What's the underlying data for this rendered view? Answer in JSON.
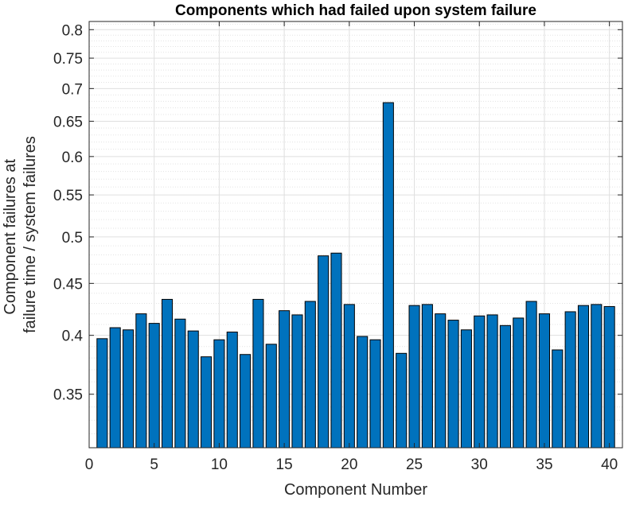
{
  "chart_data": {
    "type": "bar",
    "title": "Components which had failed upon system failure",
    "xlabel": "Component Number",
    "ylabel_lines": [
      "Component failures at",
      "failure time / system failures"
    ],
    "x": [
      1,
      2,
      3,
      4,
      5,
      6,
      7,
      8,
      9,
      10,
      11,
      12,
      13,
      14,
      15,
      16,
      17,
      18,
      19,
      20,
      21,
      22,
      23,
      24,
      25,
      26,
      27,
      28,
      29,
      30,
      31,
      32,
      33,
      34,
      35,
      36,
      37,
      38,
      39,
      40
    ],
    "values": [
      0.397,
      0.407,
      0.405,
      0.42,
      0.411,
      0.434,
      0.415,
      0.404,
      0.381,
      0.396,
      0.403,
      0.383,
      0.434,
      0.392,
      0.423,
      0.419,
      0.432,
      0.479,
      0.482,
      0.429,
      0.399,
      0.396,
      0.678,
      0.384,
      0.428,
      0.429,
      0.42,
      0.414,
      0.405,
      0.418,
      0.419,
      0.409,
      0.416,
      0.432,
      0.42,
      0.387,
      0.422,
      0.428,
      0.429,
      0.427
    ],
    "xlim": [
      0,
      41
    ],
    "ylim": [
      0.31,
      0.815
    ],
    "y_scale": "log",
    "xticks": [
      0,
      5,
      10,
      15,
      20,
      25,
      30,
      35,
      40
    ],
    "xtick_labels": [
      "0",
      "5",
      "10",
      "15",
      "20",
      "25",
      "30",
      "35",
      "40"
    ],
    "yticks": [
      0.35,
      0.4,
      0.45,
      0.5,
      0.55,
      0.6,
      0.65,
      0.7,
      0.75,
      0.8
    ],
    "ytick_labels": [
      "0.35",
      "0.4",
      "0.45",
      "0.5",
      "0.55",
      "0.6",
      "0.65",
      "0.7",
      "0.75",
      "0.8"
    ],
    "grid": true,
    "minor_grid": true,
    "bar_color": "#0072BD",
    "bar_edge_color": "#000000"
  }
}
